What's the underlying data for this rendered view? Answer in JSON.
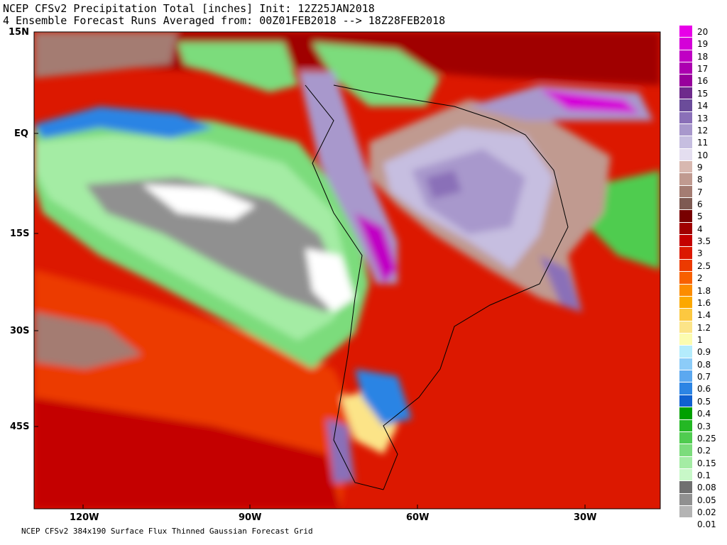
{
  "header": {
    "title_line1": "NCEP CFSv2 Precipitation Total [inches] Init: 12Z25JAN2018",
    "title_line2": "4 Ensemble Forecast Runs Averaged from: 00Z01FEB2018 --> 18Z28FEB2018"
  },
  "footer": {
    "grid_text": "NCEP CFSv2 384x190 Surface Flux Thinned Gaussian Forecast Grid"
  },
  "axes": {
    "lat_labels": [
      "15N",
      "EQ",
      "15S",
      "30S",
      "45S"
    ],
    "lon_labels": [
      "120W",
      "90W",
      "60W",
      "30W"
    ]
  },
  "legend": {
    "items": [
      {
        "label": "20",
        "color": "#e800e8"
      },
      {
        "label": "19",
        "color": "#d400d8"
      },
      {
        "label": "18",
        "color": "#c000c4"
      },
      {
        "label": "17",
        "color": "#ac00b0"
      },
      {
        "label": "16",
        "color": "#98009c"
      },
      {
        "label": "15",
        "color": "#6e2a8c"
      },
      {
        "label": "14",
        "color": "#6b4c9a"
      },
      {
        "label": "13",
        "color": "#8a70b8"
      },
      {
        "label": "12",
        "color": "#a898cc"
      },
      {
        "label": "11",
        "color": "#c6bee0"
      },
      {
        "label": "10",
        "color": "#e4def0"
      },
      {
        "label": "9",
        "color": "#d8b8b0"
      },
      {
        "label": "8",
        "color": "#c09a90"
      },
      {
        "label": "7",
        "color": "#a47c72"
      },
      {
        "label": "6",
        "color": "#7e5a52"
      },
      {
        "label": "5",
        "color": "#780000"
      },
      {
        "label": "4",
        "color": "#a00000"
      },
      {
        "label": "3.5",
        "color": "#c40000"
      },
      {
        "label": "3",
        "color": "#dc1800"
      },
      {
        "label": "2.5",
        "color": "#ec3a00"
      },
      {
        "label": "2",
        "color": "#f86000"
      },
      {
        "label": "1.8",
        "color": "#fc8c00"
      },
      {
        "label": "1.6",
        "color": "#fca800"
      },
      {
        "label": "1.4",
        "color": "#fcc840"
      },
      {
        "label": "1.2",
        "color": "#fce488"
      },
      {
        "label": "1",
        "color": "#fcfcb0"
      },
      {
        "label": "0.9",
        "color": "#b4ecfc"
      },
      {
        "label": "0.8",
        "color": "#8cccf8"
      },
      {
        "label": "0.7",
        "color": "#5ca8f0"
      },
      {
        "label": "0.6",
        "color": "#2c84e4"
      },
      {
        "label": "0.5",
        "color": "#1060d0"
      },
      {
        "label": "0.4",
        "color": "#00a000"
      },
      {
        "label": "0.3",
        "color": "#24b824"
      },
      {
        "label": "0.25",
        "color": "#50cc50"
      },
      {
        "label": "0.2",
        "color": "#7cdc7c"
      },
      {
        "label": "0.15",
        "color": "#a4eca4"
      },
      {
        "label": "0.1",
        "color": "#c8f8c8"
      },
      {
        "label": "0.08",
        "color": "#707070"
      },
      {
        "label": "0.05",
        "color": "#909090"
      },
      {
        "label": "0.02",
        "color": "#b4b4b4"
      },
      {
        "label": "0.01",
        "color": "#ffffff"
      }
    ]
  }
}
